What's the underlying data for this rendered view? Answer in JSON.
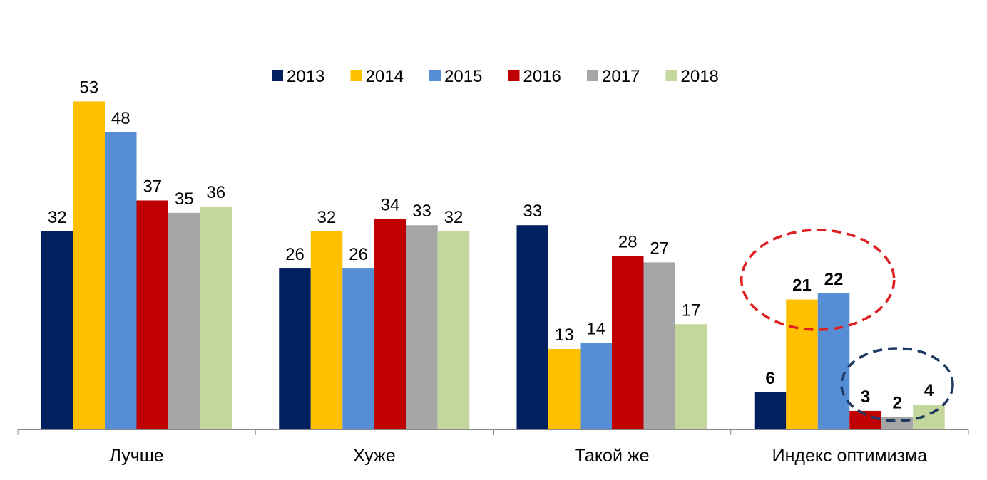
{
  "chart_data": {
    "type": "bar",
    "title": "",
    "xlabel": "",
    "ylabel": "",
    "ylim": [
      0,
      60
    ],
    "grid": false,
    "legend_placement": "top-center",
    "categories": [
      "Лучше",
      "Хуже",
      "Такой же",
      "Индекс оптимизма"
    ],
    "series": [
      {
        "name": "2013",
        "color": "#002060",
        "values": [
          32,
          26,
          33,
          6
        ]
      },
      {
        "name": "2014",
        "color": "#FFC000",
        "values": [
          53,
          32,
          13,
          21
        ]
      },
      {
        "name": "2015",
        "color": "#558ED5",
        "values": [
          48,
          26,
          14,
          22
        ]
      },
      {
        "name": "2016",
        "color": "#C00000",
        "values": [
          37,
          34,
          28,
          3
        ]
      },
      {
        "name": "2017",
        "color": "#A6A6A6",
        "values": [
          35,
          33,
          27,
          2
        ]
      },
      {
        "name": "2018",
        "color": "#C3D69B",
        "values": [
          36,
          32,
          17,
          4
        ]
      }
    ],
    "bold_label_category": "Индекс оптимизма",
    "annotations": [
      {
        "type": "dashed-ellipse",
        "color": "#E02020",
        "encloses": [
          "2014",
          "2015"
        ],
        "category": "Индекс оптимизма"
      },
      {
        "type": "dashed-ellipse",
        "color": "#1F3864",
        "encloses": [
          "2016",
          "2017",
          "2018"
        ],
        "category": "Индекс оптимизма"
      }
    ]
  }
}
